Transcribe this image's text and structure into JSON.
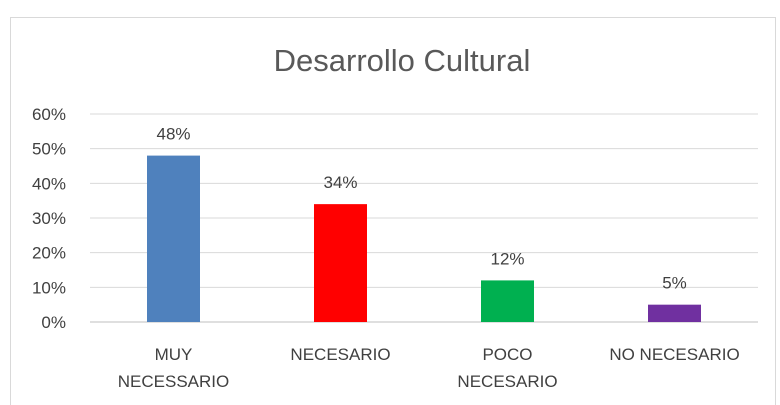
{
  "chart_data": {
    "type": "bar",
    "title": "Desarrollo Cultural",
    "categories": [
      [
        "MUY",
        "NECESSARIO"
      ],
      [
        "NECESARIO"
      ],
      [
        "POCO",
        "NECESARIO"
      ],
      [
        "NO NECESARIO"
      ]
    ],
    "values": [
      0.48,
      0.34,
      0.12,
      0.05
    ],
    "data_labels": [
      "48%",
      "34%",
      "12%",
      "5%"
    ],
    "colors": [
      "#4f81bd",
      "#ff0000",
      "#00b050",
      "#7030a0"
    ],
    "ylim": [
      0,
      0.6
    ],
    "yticks": [
      0,
      0.1,
      0.2,
      0.3,
      0.4,
      0.5,
      0.6
    ],
    "ytick_labels": [
      "0%",
      "10%",
      "20%",
      "30%",
      "40%",
      "50%",
      "60%"
    ],
    "xlabel": "",
    "ylabel": "",
    "grid": true,
    "legend": "none"
  }
}
